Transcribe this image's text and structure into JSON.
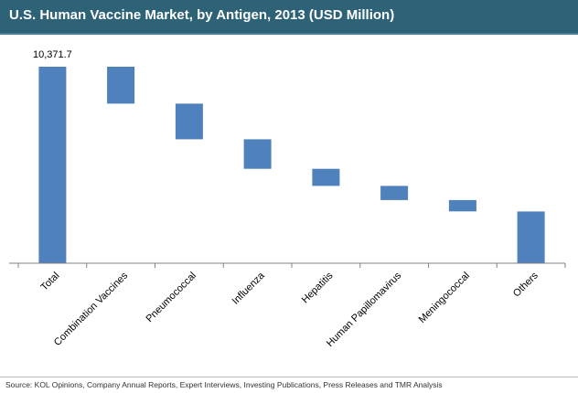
{
  "title": "U.S. Human Vaccine Market, by Antigen, 2013 (USD Million)",
  "source": "Source: KOL Opinions, Company Annual Reports, Expert Interviews, Investing Publications, Press Releases and TMR Analysis",
  "colors": {
    "title_bar": "#2d6277",
    "bar": "#4f81bd",
    "axis": "#808080"
  },
  "chart_data": {
    "type": "bar",
    "subtype": "waterfall",
    "title": "U.S. Human Vaccine Market, by Antigen, 2013 (USD Million)",
    "xlabel": "",
    "ylabel": "",
    "ylim": [
      0,
      10371.7
    ],
    "grid": false,
    "legend": "none",
    "categories": [
      "Total",
      "Combination Vaccines",
      "Pneumococcal",
      "Influenza",
      "Hepatitis",
      "Human Papillomavirus",
      "Meningococcal",
      "Others"
    ],
    "values": [
      10371.7,
      1950,
      1880,
      1560,
      900,
      750,
      600,
      2732
    ],
    "data_labels": [
      "10,371.7",
      "",
      "",
      "",
      "",
      "",
      "",
      ""
    ]
  }
}
